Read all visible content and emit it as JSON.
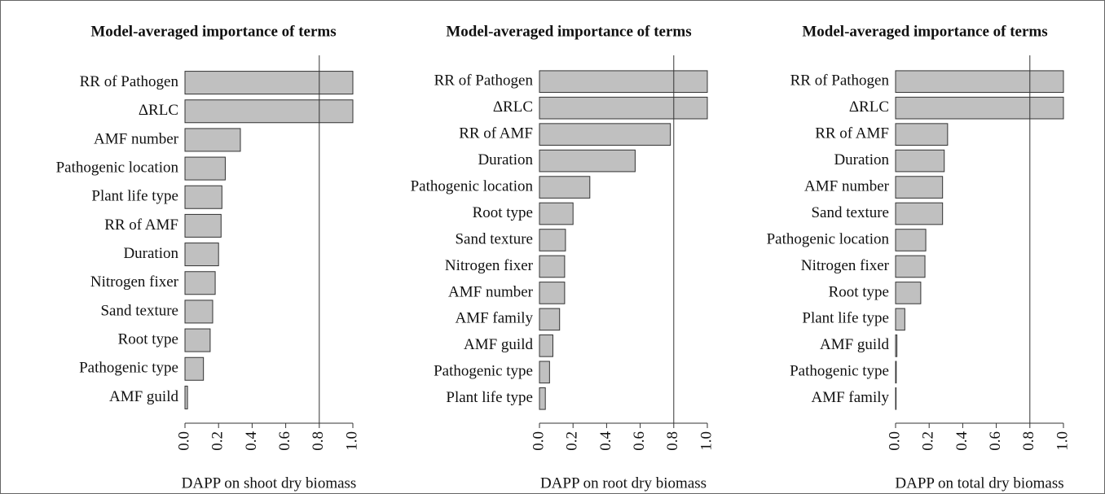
{
  "chart_data": [
    {
      "type": "bar",
      "orientation": "horizontal",
      "title": "Model-averaged importance of terms",
      "x_label": "DAPP on shoot dry biomass",
      "categories": [
        "RR of Pathogen",
        "ΔRLC",
        "AMF number",
        "Pathogenic location",
        "Plant life type",
        "RR of AMF",
        "Duration",
        "Nitrogen fixer",
        "Sand texture",
        "Root type",
        "Pathogenic type",
        "AMF guild"
      ],
      "values": [
        1.0,
        1.0,
        0.33,
        0.24,
        0.22,
        0.215,
        0.2,
        0.18,
        0.165,
        0.15,
        0.11,
        0.015
      ],
      "color": "#c0c0c0",
      "xlim": [
        0,
        1
      ],
      "xticks": [
        {
          "value": 0,
          "label": "0.0"
        },
        0.2,
        0.4,
        0.6,
        0.8,
        {
          "value": 1,
          "label": "1.0"
        }
      ],
      "reference_line": 0.8
    },
    {
      "type": "bar",
      "orientation": "horizontal",
      "title": "Model-averaged importance of terms",
      "x_label": "DAPP on root dry biomass",
      "categories": [
        "RR of Pathogen",
        "ΔRLC",
        "RR of AMF",
        "Duration",
        "Pathogenic location",
        "Root type",
        "Sand texture",
        "Nitrogen fixer",
        "AMF number",
        "AMF family",
        "AMF guild",
        "Pathogenic type",
        "Plant life type"
      ],
      "values": [
        1.0,
        1.0,
        0.78,
        0.57,
        0.3,
        0.2,
        0.155,
        0.15,
        0.15,
        0.12,
        0.08,
        0.06,
        0.035
      ],
      "color": "#c0c0c0",
      "xlim": [
        0,
        1
      ],
      "xticks": [
        {
          "value": 0,
          "label": "0.0"
        },
        0.2,
        0.4,
        0.6,
        0.8,
        {
          "value": 1,
          "label": "1.0"
        }
      ],
      "reference_line": 0.8
    },
    {
      "type": "bar",
      "orientation": "horizontal",
      "title": "Model-averaged importance of terms",
      "x_label": "DAPP on total dry biomass",
      "categories": [
        "RR of Pathogen",
        "ΔRLC",
        "RR of AMF",
        "Duration",
        "AMF number",
        "Sand texture",
        "Pathogenic location",
        "Nitrogen fixer",
        "Root type",
        "Plant life type",
        "AMF guild",
        "Pathogenic type",
        "AMF family"
      ],
      "values": [
        1.0,
        1.0,
        0.31,
        0.29,
        0.28,
        0.28,
        0.18,
        0.175,
        0.15,
        0.055,
        0.008,
        0.004,
        0.003
      ],
      "color": "#c0c0c0",
      "xlim": [
        0,
        1
      ],
      "xticks": [
        {
          "value": 0,
          "label": "0.0"
        },
        0.2,
        0.4,
        0.6,
        0.8,
        {
          "value": 1,
          "label": "1.0"
        }
      ],
      "reference_line": 0.8
    }
  ]
}
